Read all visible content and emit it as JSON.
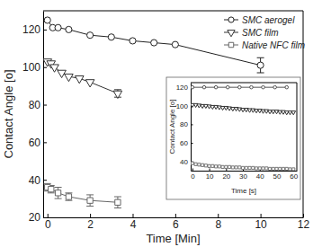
{
  "chart_data": [
    {
      "type": "line",
      "x_label": "Time [Min]",
      "y_label": "Contact Angle [o]",
      "xlim": [
        -0.2,
        12
      ],
      "xticks": [
        0,
        2,
        4,
        6,
        8,
        10,
        12
      ],
      "ylim": [
        20,
        130
      ],
      "yticks": [
        20,
        40,
        60,
        80,
        100,
        120
      ],
      "legend": "upper right",
      "series": [
        {
          "name": "SMC aerogel",
          "color": "#222222",
          "marker": "circle",
          "line_style": "solid",
          "x": [
            0,
            0.25,
            0.5,
            1,
            2,
            3,
            4,
            5,
            6,
            10
          ],
          "values": [
            125,
            121,
            121,
            120,
            117,
            116,
            114,
            113,
            112,
            101
          ],
          "errors": [
            null,
            null,
            null,
            null,
            null,
            null,
            null,
            null,
            null,
            4
          ]
        },
        {
          "name": "SMC film",
          "color": "#333333",
          "marker": "triangle",
          "line_style": "solid",
          "x": [
            0,
            0.17,
            0.33,
            0.67,
            1,
            1.5,
            2,
            3.3
          ],
          "values": [
            103,
            102,
            100,
            97,
            95,
            94,
            92,
            86
          ],
          "errors": [
            null,
            null,
            null,
            null,
            null,
            null,
            null,
            2
          ]
        },
        {
          "name": "Native NFC film",
          "color": "#666666",
          "marker": "square",
          "line_style": "solid",
          "x": [
            0,
            0.17,
            0.5,
            1,
            2,
            3.3
          ],
          "values": [
            36,
            35,
            33,
            31,
            29,
            28
          ],
          "errors": [
            2,
            2,
            3,
            2,
            3,
            3
          ]
        }
      ]
    },
    {
      "type": "line",
      "x_label": "Time [s]",
      "y_label": "Contact Angle [o]",
      "xlim": [
        -1,
        62
      ],
      "xticks": [
        0,
        10,
        20,
        30,
        40,
        50,
        60
      ],
      "ylim": [
        30,
        125
      ],
      "yticks": [
        40,
        60,
        80,
        100,
        120
      ],
      "series": [
        {
          "color": "#555555",
          "marker": "circle",
          "line_style": "solid",
          "x": [
            0,
            7,
            14,
            21,
            28,
            35,
            42,
            49,
            56
          ],
          "values": [
            120,
            120,
            120,
            120,
            120,
            120,
            120,
            120,
            120
          ]
        },
        {
          "color": "#333333",
          "marker": "triangle",
          "line_style": "solid",
          "x": [
            0,
            2,
            4,
            6,
            8,
            10,
            12,
            14,
            16,
            18,
            20,
            22,
            24,
            26,
            28,
            30,
            32,
            34,
            36,
            38,
            40,
            42,
            44,
            46,
            48,
            50,
            52,
            54,
            56,
            58,
            60
          ],
          "values": [
            101,
            101,
            100.5,
            100,
            100,
            99.5,
            99,
            99,
            98.5,
            98,
            98,
            97.5,
            97,
            97,
            96.5,
            96,
            96,
            95.5,
            95.5,
            95,
            95,
            94.5,
            94.5,
            94,
            94,
            94,
            93.5,
            93.5,
            93,
            93,
            93
          ]
        },
        {
          "color": "#777777",
          "marker": "square",
          "line_style": "solid",
          "x": [
            0,
            2,
            4,
            6,
            8,
            10,
            12,
            14,
            16,
            18,
            20,
            22,
            24,
            26,
            28,
            30,
            32,
            34,
            36,
            38,
            40,
            42,
            44,
            46,
            48,
            50,
            52,
            54,
            56,
            58,
            60
          ],
          "values": [
            38,
            37,
            36.5,
            36,
            35.5,
            35,
            35,
            34.5,
            34.5,
            34,
            34,
            34,
            33.5,
            33.5,
            33.5,
            33,
            33,
            33,
            33,
            32.5,
            32.5,
            32.5,
            32.5,
            32,
            32,
            32,
            32,
            32,
            32,
            31.5,
            31.5
          ]
        }
      ]
    }
  ]
}
